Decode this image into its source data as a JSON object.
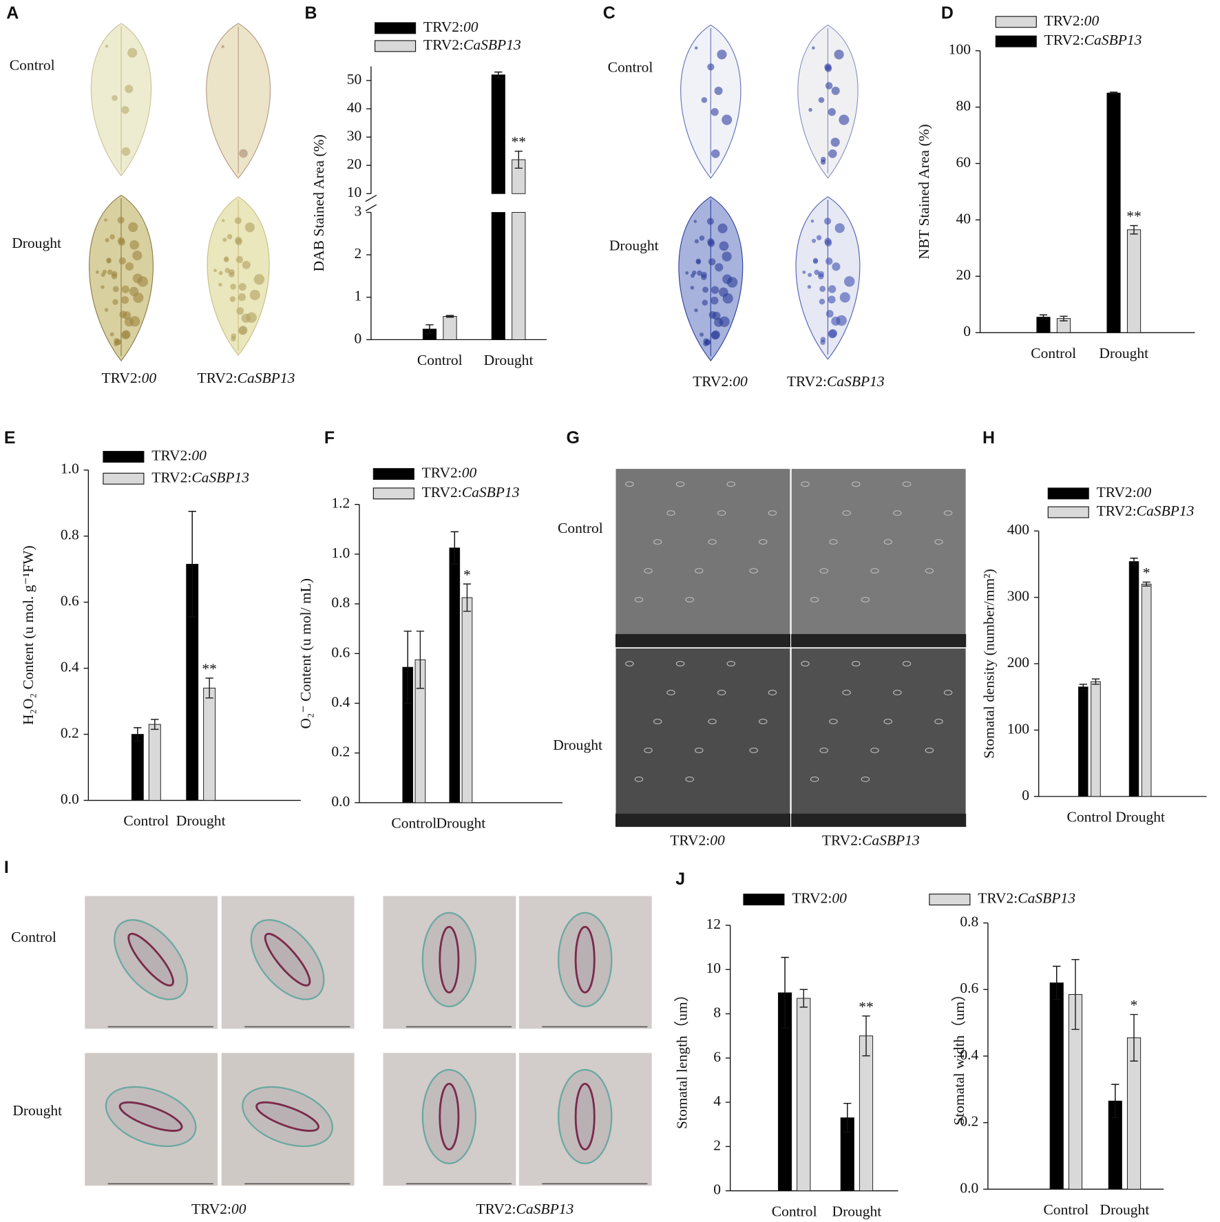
{
  "chart_data": [
    {
      "panel": "B",
      "type": "bar",
      "ylabel": "DAB Stained Area (%)",
      "categories": [
        "Control",
        "Drought"
      ],
      "series": [
        {
          "name": "TRV2:00",
          "color": "#000000",
          "values": [
            0.25,
            52
          ],
          "errors": [
            0.1,
            1
          ],
          "annotations": [
            null,
            null
          ]
        },
        {
          "name": "TRV2:CaSBP13",
          "color": "#d9d9d9",
          "values": [
            0.55,
            22
          ],
          "errors": [
            0.02,
            3
          ],
          "annotations": [
            null,
            "**"
          ]
        }
      ],
      "ylim": [
        0,
        55
      ],
      "ybreak": [
        3,
        10
      ],
      "yticks": [
        0,
        1,
        2,
        3,
        10,
        20,
        30,
        40,
        50
      ]
    },
    {
      "panel": "D",
      "type": "bar",
      "ylabel": "NBT Stained Area (%)",
      "categories": [
        "Control",
        "Drought"
      ],
      "bar_order": "reverse",
      "series": [
        {
          "name": "TRV2:00",
          "color": "#d9d9d9",
          "values": [
            5,
            36.5
          ],
          "errors": [
            0.8,
            1.5
          ],
          "annotations": [
            null,
            "**"
          ]
        },
        {
          "name": "TRV2:CaSBP13",
          "color": "#000000",
          "values": [
            5.5,
            85
          ],
          "errors": [
            0.8,
            0.3
          ],
          "annotations": [
            null,
            null
          ]
        }
      ],
      "ylim": [
        0,
        100
      ],
      "yticks": [
        0,
        20,
        40,
        60,
        80,
        100
      ]
    },
    {
      "panel": "E",
      "type": "bar",
      "ylabel": "H₂O₂ Content (u mol. g⁻¹FW)",
      "categories": [
        "Control",
        "Drought"
      ],
      "series": [
        {
          "name": "TRV2:00",
          "color": "#000000",
          "values": [
            0.2,
            0.715
          ],
          "errors": [
            0.02,
            0.16
          ],
          "annotations": [
            null,
            null
          ]
        },
        {
          "name": "TRV2:CaSBP13",
          "color": "#d9d9d9",
          "values": [
            0.23,
            0.34
          ],
          "errors": [
            0.015,
            0.03
          ],
          "annotations": [
            null,
            "**"
          ]
        }
      ],
      "ylim": [
        0,
        1
      ],
      "yticks": [
        {
          "value": 0,
          "label": "0.0"
        },
        {
          "value": 0.2,
          "label": "0.2"
        },
        {
          "value": 0.4,
          "label": "0.4"
        },
        {
          "value": 0.6,
          "label": "0.6"
        },
        {
          "value": 0.8,
          "label": "0.8"
        },
        {
          "value": 1,
          "label": "1.0"
        }
      ]
    },
    {
      "panel": "F",
      "type": "bar",
      "ylabel": "O₂⁻ Content (u mol/ mL)",
      "categories": [
        "Control",
        "Drought"
      ],
      "series": [
        {
          "name": "TRV2:00",
          "color": "#000000",
          "values": [
            0.545,
            1.025
          ],
          "errors": [
            0.145,
            0.065
          ],
          "annotations": [
            null,
            null
          ]
        },
        {
          "name": "TRV2:CaSBP13",
          "color": "#d9d9d9",
          "values": [
            0.575,
            0.825
          ],
          "errors": [
            0.115,
            0.055
          ],
          "annotations": [
            null,
            "*"
          ]
        }
      ],
      "ylim": [
        0,
        1.2
      ],
      "yticks": [
        {
          "value": 0,
          "label": "0.0"
        },
        {
          "value": 0.2,
          "label": "0.2"
        },
        {
          "value": 0.4,
          "label": "0.4"
        },
        {
          "value": 0.6,
          "label": "0.6"
        },
        {
          "value": 0.8,
          "label": "0.8"
        },
        {
          "value": 1,
          "label": "1.0"
        },
        {
          "value": 1.2,
          "label": "1.2"
        }
      ]
    },
    {
      "panel": "H",
      "type": "bar",
      "ylabel": "Stomatal density (number/mm²)",
      "categories": [
        "Control",
        "Drought"
      ],
      "series": [
        {
          "name": "TRV2:00",
          "color": "#000000",
          "values": [
            165,
            354
          ],
          "errors": [
            4,
            5
          ],
          "annotations": [
            null,
            null
          ]
        },
        {
          "name": "TRV2:CaSBP13",
          "color": "#d9d9d9",
          "values": [
            173,
            320
          ],
          "errors": [
            4,
            3
          ],
          "annotations": [
            null,
            "*"
          ]
        }
      ],
      "ylim": [
        0,
        400
      ],
      "yticks": [
        0,
        100,
        200,
        300,
        400
      ]
    },
    {
      "panel": "J",
      "type": "bar",
      "ylabel": "Stomatal length（um）",
      "categories": [
        "Control",
        "Drought"
      ],
      "series": [
        {
          "name": "TRV2:00",
          "color": "#000000",
          "values": [
            8.95,
            3.3
          ],
          "errors": [
            1.6,
            0.65
          ],
          "annotations": [
            null,
            null
          ]
        },
        {
          "name": "TRV2:CaSBP13",
          "color": "#d9d9d9",
          "values": [
            8.7,
            7.0
          ],
          "errors": [
            0.4,
            0.9
          ],
          "annotations": [
            null,
            "**"
          ]
        }
      ],
      "ylim": [
        0,
        12
      ],
      "yticks": [
        0,
        2,
        4,
        6,
        8,
        10,
        12
      ]
    },
    {
      "type": "bar",
      "ylabel": "Stomatal width（um）",
      "categories": [
        "Control",
        "Drought"
      ],
      "series": [
        {
          "color": "#000000",
          "values": [
            0.62,
            0.265
          ],
          "errors": [
            0.05,
            0.05
          ],
          "annotations": [
            null,
            null
          ]
        },
        {
          "color": "#d9d9d9",
          "values": [
            0.585,
            0.455
          ],
          "errors": [
            0.105,
            0.07
          ],
          "annotations": [
            null,
            "*"
          ]
        }
      ],
      "ylim": [
        0,
        0.8
      ],
      "yticks": [
        {
          "value": 0,
          "label": "0.0"
        },
        {
          "value": 0.2,
          "label": "0.2"
        },
        {
          "value": 0.4,
          "label": "0.4"
        },
        {
          "value": 0.6,
          "label": "0.6"
        },
        {
          "value": 0.8,
          "label": "0.8"
        }
      ]
    }
  ],
  "image_panels": [
    {
      "letter": "A",
      "rows": [
        "Control",
        "Drought"
      ],
      "columns": [
        "TRV2:00",
        "TRV2:CaSBP13"
      ]
    },
    {
      "letter": "C",
      "rows": [
        "Control",
        "Drought"
      ],
      "columns": [
        "TRV2:00",
        "TRV2:CaSBP13"
      ]
    },
    {
      "letter": "G",
      "rows": [
        "Control",
        "Drought"
      ],
      "columns": [
        "TRV2:00",
        "TRV2:CaSBP13"
      ]
    },
    {
      "letter": "I",
      "rows": [
        "Control",
        "Drought"
      ],
      "columns": [
        "TRV2:00",
        "TRV2:CaSBP13"
      ]
    }
  ]
}
